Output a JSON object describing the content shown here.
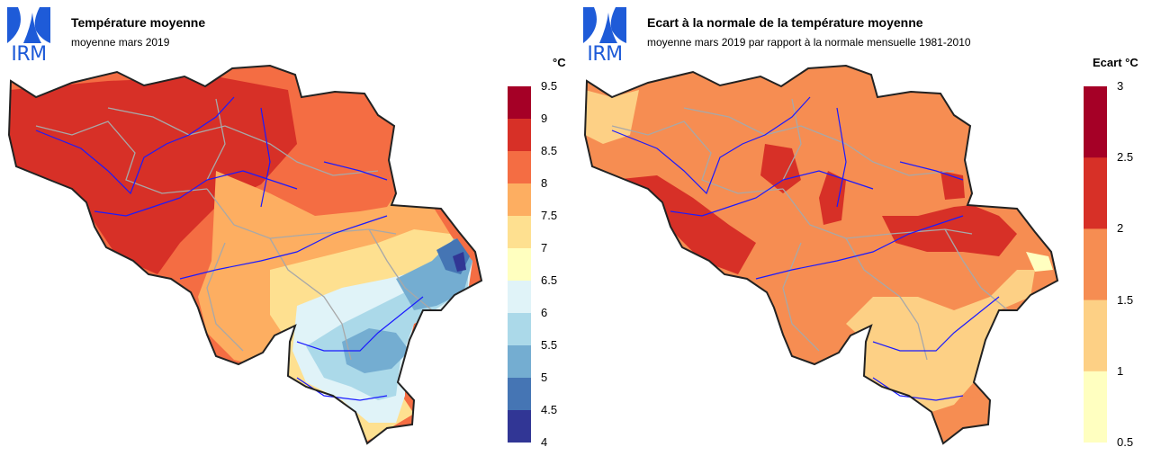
{
  "logo_text": "IRM",
  "left": {
    "title": "Température moyenne",
    "subtitle": "moyenne mars 2019",
    "legend_unit": "°C",
    "legend_ticks": [
      "9.5",
      "9",
      "8.5",
      "8",
      "7.5",
      "7",
      "6.5",
      "6",
      "5.5",
      "5",
      "4.5",
      "4"
    ],
    "legend_colors": [
      "#a50026",
      "#d73027",
      "#f46d43",
      "#fdae61",
      "#fee090",
      "#ffffbf",
      "#e0f3f8",
      "#abd9e9",
      "#74add1",
      "#4575b4",
      "#313695"
    ]
  },
  "right": {
    "title": "Ecart à la normale de la température moyenne",
    "subtitle": "moyenne mars 2019 par rapport à la normale mensuelle 1981-2010",
    "legend_unit": "Ecart °C",
    "legend_ticks": [
      "3",
      "2.5",
      "2",
      "1.5",
      "1",
      "0.5"
    ],
    "legend_colors": [
      "#a50026",
      "#d73027",
      "#f68d52",
      "#fdd085",
      "#ffffc0"
    ]
  },
  "colors": {
    "border": "#222222",
    "rivers": "#1a1aff",
    "provinces": "#a8a8a8",
    "logo": "#1e5bd8"
  }
}
